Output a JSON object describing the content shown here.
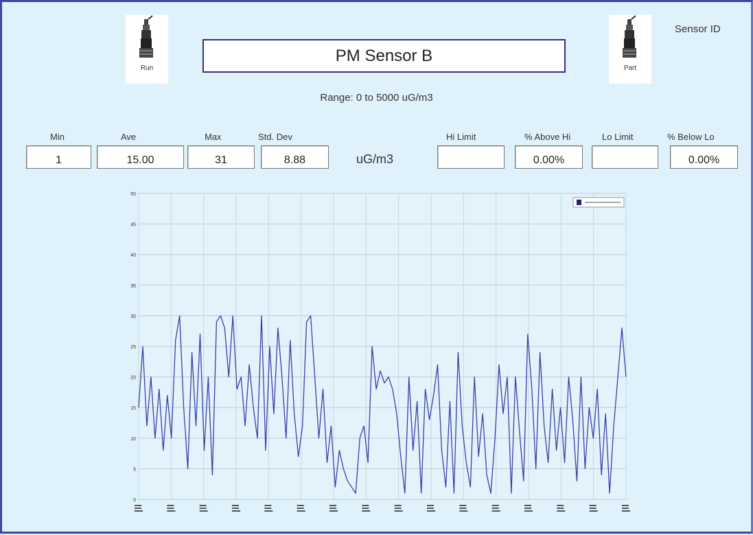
{
  "window": {
    "title": "PM Sensor B",
    "sensor_id_label": "Sensor ID",
    "range_text": "Range: 0 to 5000 uG/m3"
  },
  "icons": {
    "left_label": "Run",
    "right_label": "Part"
  },
  "stats": {
    "min_label": "Min",
    "min_value": "1",
    "ave_label": "Ave",
    "ave_value": "15.00",
    "max_label": "Max",
    "max_value": "31",
    "stddev_label": "Std. Dev",
    "stddev_value": "8.88",
    "unit": "uG/m3",
    "hi_limit_label": "Hi Limit",
    "hi_limit_value": "",
    "above_hi_label": "% Above Hi",
    "above_hi_value": "0.00%",
    "lo_limit_label": "Lo Limit",
    "lo_limit_value": "",
    "below_lo_label": "% Below Lo",
    "below_lo_value": "0.00%"
  },
  "colors": {
    "background": "#dff1fb",
    "line": "#3a3fa8",
    "border": "#2b2f8f"
  },
  "chart_data": {
    "type": "line",
    "title": "",
    "xlabel": "",
    "ylabel": "",
    "ylim": [
      0,
      50
    ],
    "yticks": [
      "0",
      "5",
      "10",
      "15",
      "20",
      "25",
      "30",
      "35",
      "40",
      "45",
      "50"
    ],
    "grid": true,
    "legend": "top-right",
    "xticks": [
      "",
      "",
      "",
      "",
      "",
      "",
      "",
      "",
      "",
      "",
      "",
      "",
      "",
      "",
      "",
      ""
    ],
    "series": [
      {
        "name": "",
        "values": [
          15,
          25,
          12,
          20,
          10,
          18,
          8,
          17,
          10,
          26,
          30,
          15,
          5,
          24,
          12,
          27,
          8,
          20,
          4,
          29,
          30,
          28,
          20,
          30,
          18,
          20,
          12,
          22,
          15,
          10,
          30,
          8,
          25,
          14,
          28,
          20,
          10,
          26,
          14,
          7,
          12,
          29,
          30,
          20,
          10,
          18,
          6,
          12,
          2,
          8,
          5,
          3,
          2,
          1,
          10,
          12,
          6,
          25,
          18,
          21,
          19,
          20,
          18,
          14,
          7,
          1,
          20,
          8,
          16,
          1,
          18,
          13,
          17,
          22,
          8,
          2,
          16,
          1,
          24,
          12,
          6,
          2,
          20,
          7,
          14,
          4,
          1,
          10,
          22,
          14,
          20,
          1,
          20,
          11,
          3,
          27,
          18,
          5,
          24,
          12,
          6,
          18,
          8,
          15,
          6,
          20,
          13,
          3,
          20,
          5,
          15,
          10,
          18,
          4,
          14,
          1,
          12,
          20,
          28,
          20
        ]
      }
    ]
  }
}
